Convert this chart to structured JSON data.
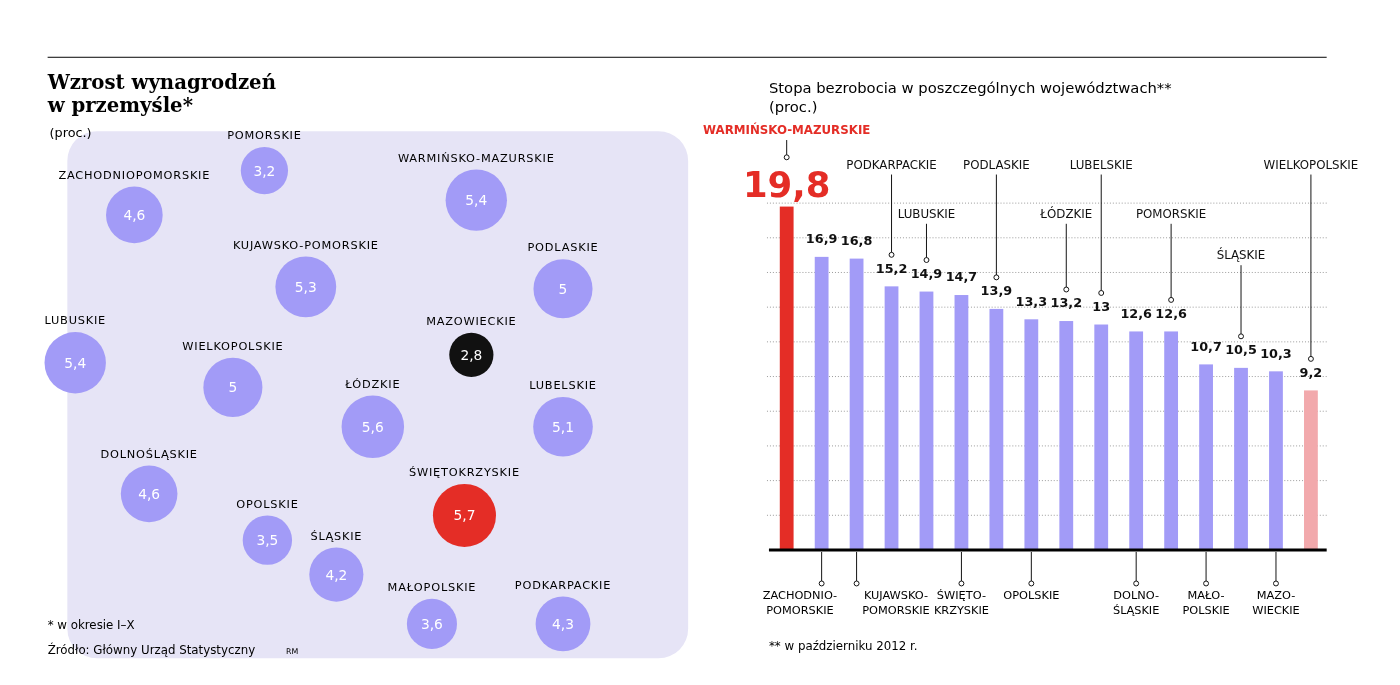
{
  "chart_data": [
    {
      "type": "other",
      "title": "Wzrost wynagrodzeń w przemyśle*",
      "subtitle": "(proc.)",
      "categories": [
        "POMORSKIE",
        "WARMIŃSKO-MAZURSKIE",
        "ZACHODNIOPOMORSKIE",
        "KUJAWSKO-POMORSKIE",
        "PODLASKIE",
        "LUBUSKIE",
        "MAZOWIECKIE",
        "WIELKOPOLSKIE",
        "ŁÓDZKIE",
        "LUBELSKIE",
        "DOLNOŚLĄSKIE",
        "ŚWIĘTOKRZYSKIE",
        "OPOLSKIE",
        "ŚLĄSKIE",
        "MAŁOPOLSKIE",
        "PODKARPACKIE"
      ],
      "values": [
        3.2,
        5.4,
        4.6,
        5.3,
        5,
        5.4,
        2.8,
        5,
        5.6,
        5.1,
        4.6,
        5.7,
        3.5,
        4.2,
        3.6,
        4.3
      ],
      "value_labels": [
        "3,2",
        "5,4",
        "4,6",
        "5,3",
        "5",
        "5,4",
        "2,8",
        "5",
        "5,6",
        "5,1",
        "4,6",
        "5,7",
        "3,5",
        "4,2",
        "3,6",
        "4,3"
      ],
      "colors": [
        "#a29bf7",
        "#a29bf7",
        "#a29bf7",
        "#a29bf7",
        "#a29bf7",
        "#a29bf7",
        "#111111",
        "#a29bf7",
        "#a29bf7",
        "#a29bf7",
        "#a29bf7",
        "#e42d26",
        "#a29bf7",
        "#a29bf7",
        "#a29bf7",
        "#a29bf7"
      ],
      "annotations": [
        "* w okresie I–X",
        "Źródło: Główny Urząd Statystyczny",
        "RM"
      ]
    },
    {
      "type": "bar",
      "title": "Stopa bezrobocia w poszczególnych województwach**",
      "subtitle": "(proc.)",
      "categories": [
        "WARMIŃSKO-MAZURSKIE",
        "ZACHODNIO-POMORSKIE",
        "KUJAWSKO-POMORSKIE",
        "PODKARPACKIE",
        "LUBUSKIE",
        "ŚWIĘTO-KRZYSKIE",
        "PODLASKIE",
        "OPOLSKIE",
        "ŁÓDZKIE",
        "LUBELSKIE",
        "DOLNO-ŚLĄSKIE",
        "POMORSKIE",
        "MAŁO-POLSKIE",
        "ŚLĄSKIE",
        "MAZO-WIECKIE",
        "WIELKOPOLSKIE"
      ],
      "values": [
        19.8,
        16.9,
        16.8,
        15.2,
        14.9,
        14.7,
        13.9,
        13.3,
        13.2,
        13,
        12.6,
        12.6,
        10.7,
        10.5,
        10.3,
        9.2
      ],
      "value_labels": [
        "19,8",
        "16,9",
        "16,8",
        "15,2",
        "14,9",
        "14,7",
        "13,9",
        "13,3",
        "13,2",
        "13",
        "12,6",
        "12,6",
        "10,7",
        "10,5",
        "10,3",
        "9,2"
      ],
      "colors": [
        "#e42d26",
        "#a29bf7",
        "#a29bf7",
        "#a29bf7",
        "#a29bf7",
        "#a29bf7",
        "#a29bf7",
        "#a29bf7",
        "#a29bf7",
        "#a29bf7",
        "#a29bf7",
        "#a29bf7",
        "#a29bf7",
        "#a29bf7",
        "#a29bf7",
        "#f2a9ac"
      ],
      "ylim": [
        0,
        20
      ],
      "yticks": [
        {
          "value": 2,
          "label": null
        },
        {
          "value": 4,
          "label": null
        },
        {
          "value": 6,
          "label": null
        },
        {
          "value": 8,
          "label": null
        },
        {
          "value": 10,
          "label": null
        },
        {
          "value": 12,
          "label": null
        },
        {
          "value": 14,
          "label": null
        },
        {
          "value": 16,
          "label": null
        },
        {
          "value": 18,
          "label": null
        },
        {
          "value": 20,
          "label": null
        }
      ],
      "grid": "y",
      "tick_labels": false,
      "annotations": [
        "** w październiku 2012 r."
      ]
    }
  ]
}
